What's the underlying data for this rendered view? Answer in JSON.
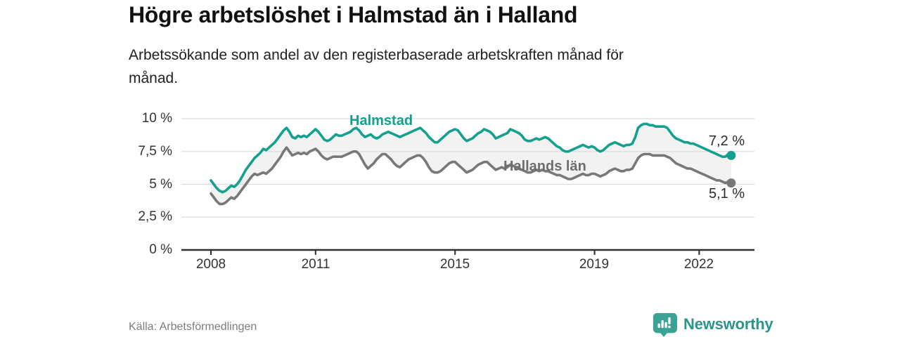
{
  "header": {
    "title": "Högre arbetslöshet i Halmstad än i Halland",
    "subtitle": "Arbetssökande som andel av den registerbaserade arbetskraften månad för månad."
  },
  "footer": {
    "source": "Källa: Arbetsförmedlingen",
    "brand": "Newsworthy",
    "brand_icon": "newsworthy-speech-bubble-bar-chart-icon"
  },
  "colors": {
    "halmstad_line": "#14a08f",
    "halland_line": "#787878",
    "band_fill": "#f2f2f2",
    "gridline": "#dcdcdc",
    "axis": "#2f2f2f",
    "title_text": "#111111",
    "tick_text": "#333333",
    "source_text": "#7d7d7d",
    "brand_teal": "#2b948b"
  },
  "chart_data": {
    "type": "line",
    "title": "Högre arbetslöshet i Halmstad än i Halland",
    "subtitle": "Arbetssökande som andel av den registerbaserade arbetskraften månad för månad.",
    "unit": "%",
    "x_start_year": 2008,
    "x_frequency": "monthly",
    "x_tick_years": [
      2008,
      2011,
      2015,
      2019,
      2022
    ],
    "x_tick_labels": [
      "2008",
      "2011",
      "2015",
      "2019",
      "2022"
    ],
    "y_ticks": [
      0,
      2.5,
      5,
      7.5,
      10
    ],
    "y_tick_labels_top_down": [
      "10 %",
      "7,5 %",
      "5 %",
      "2,5 %",
      "0 %"
    ],
    "ylim": [
      0,
      10
    ],
    "grid": true,
    "band_between_series": true,
    "legend": "inline-labels",
    "series": [
      {
        "name": "Halmstad",
        "color": "#14a08f",
        "end_label": "7,2 %",
        "end_value": 7.2,
        "values": [
          5.3,
          5.0,
          4.7,
          4.5,
          4.4,
          4.5,
          4.7,
          4.9,
          4.8,
          5.0,
          5.3,
          5.7,
          6.1,
          6.4,
          6.7,
          7.0,
          7.2,
          7.4,
          7.7,
          7.6,
          7.8,
          8.0,
          8.2,
          8.5,
          8.8,
          9.1,
          9.3,
          9.0,
          8.6,
          8.5,
          8.7,
          8.6,
          8.7,
          8.6,
          8.8,
          9.0,
          9.2,
          9.0,
          8.7,
          8.4,
          8.3,
          8.4,
          8.6,
          8.8,
          8.7,
          8.7,
          8.8,
          8.9,
          9.0,
          9.2,
          9.3,
          9.1,
          8.8,
          8.6,
          8.7,
          8.8,
          8.6,
          8.5,
          8.6,
          8.8,
          8.9,
          9.0,
          8.9,
          8.8,
          8.7,
          8.6,
          8.7,
          8.8,
          8.9,
          9.0,
          9.1,
          9.2,
          9.3,
          9.1,
          8.9,
          8.6,
          8.4,
          8.2,
          8.2,
          8.4,
          8.6,
          8.8,
          9.0,
          9.1,
          9.2,
          9.1,
          8.8,
          8.5,
          8.3,
          8.4,
          8.5,
          8.7,
          8.9,
          9.0,
          9.2,
          9.1,
          9.0,
          8.8,
          8.5,
          8.6,
          8.7,
          8.8,
          8.9,
          9.2,
          9.1,
          9.0,
          8.9,
          8.7,
          8.4,
          8.3,
          8.3,
          8.4,
          8.5,
          8.4,
          8.5,
          8.6,
          8.5,
          8.3,
          8.1,
          7.9,
          7.8,
          7.6,
          7.5,
          7.5,
          7.6,
          7.7,
          7.8,
          7.9,
          8.0,
          7.9,
          7.8,
          7.9,
          7.8,
          7.6,
          7.5,
          7.6,
          7.8,
          8.0,
          8.1,
          8.2,
          8.1,
          8.0,
          7.9,
          8.0,
          8.0,
          8.1,
          8.6,
          9.3,
          9.5,
          9.6,
          9.6,
          9.5,
          9.5,
          9.4,
          9.4,
          9.4,
          9.4,
          9.3,
          9.0,
          8.7,
          8.5,
          8.4,
          8.3,
          8.2,
          8.2,
          8.1,
          8.1,
          8.0,
          7.9,
          7.8,
          7.7,
          7.6,
          7.5,
          7.4,
          7.3,
          7.2,
          7.1,
          7.1,
          7.3,
          7.2
        ]
      },
      {
        "name": "Hallands län",
        "color": "#787878",
        "end_label": "5,1 %",
        "end_value": 5.1,
        "values": [
          4.3,
          4.0,
          3.7,
          3.5,
          3.5,
          3.6,
          3.8,
          4.0,
          3.9,
          4.1,
          4.4,
          4.7,
          5.0,
          5.3,
          5.6,
          5.8,
          5.7,
          5.8,
          5.9,
          5.8,
          6.0,
          6.2,
          6.5,
          6.8,
          7.1,
          7.5,
          7.8,
          7.5,
          7.2,
          7.3,
          7.4,
          7.3,
          7.4,
          7.3,
          7.5,
          7.6,
          7.7,
          7.5,
          7.2,
          7.0,
          6.9,
          7.0,
          7.1,
          7.1,
          7.1,
          7.1,
          7.2,
          7.3,
          7.4,
          7.5,
          7.5,
          7.3,
          6.9,
          6.5,
          6.2,
          6.4,
          6.6,
          6.9,
          7.1,
          7.3,
          7.3,
          7.1,
          6.9,
          6.6,
          6.4,
          6.3,
          6.5,
          6.7,
          6.9,
          7.0,
          7.1,
          7.2,
          7.2,
          7.0,
          6.7,
          6.3,
          6.0,
          5.9,
          5.9,
          6.0,
          6.2,
          6.4,
          6.6,
          6.7,
          6.7,
          6.5,
          6.3,
          6.1,
          5.9,
          6.0,
          6.1,
          6.3,
          6.5,
          6.6,
          6.7,
          6.7,
          6.5,
          6.3,
          6.1,
          6.2,
          6.3,
          6.2,
          6.3,
          6.5,
          6.4,
          6.3,
          6.2,
          6.1,
          6.0,
          5.9,
          5.9,
          6.0,
          6.1,
          6.0,
          6.1,
          6.0,
          6.0,
          5.9,
          5.8,
          5.7,
          5.7,
          5.6,
          5.5,
          5.4,
          5.4,
          5.5,
          5.6,
          5.7,
          5.8,
          5.7,
          5.7,
          5.8,
          5.8,
          5.7,
          5.6,
          5.7,
          5.8,
          6.0,
          6.1,
          6.2,
          6.1,
          6.0,
          6.0,
          6.1,
          6.1,
          6.2,
          6.6,
          7.0,
          7.2,
          7.3,
          7.3,
          7.3,
          7.2,
          7.2,
          7.2,
          7.2,
          7.2,
          7.1,
          7.0,
          6.8,
          6.6,
          6.5,
          6.4,
          6.3,
          6.2,
          6.2,
          6.1,
          6.0,
          5.9,
          5.8,
          5.7,
          5.6,
          5.5,
          5.4,
          5.3,
          5.3,
          5.2,
          5.1,
          5.2,
          5.1
        ]
      }
    ]
  }
}
